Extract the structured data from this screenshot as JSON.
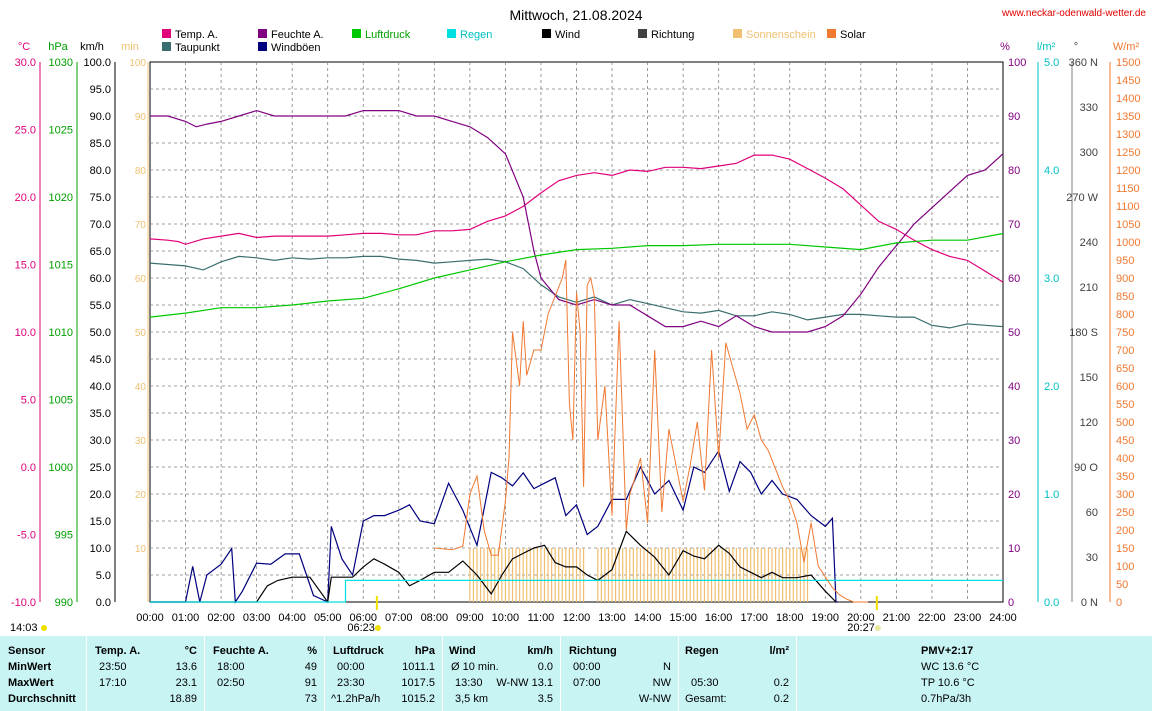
{
  "header": {
    "title": "Mittwoch, 21.08.2024",
    "website": "www.neckar-odenwald-wetter.de"
  },
  "colors": {
    "temp": "#e0007a",
    "dew": "#3a6e6e",
    "hum": "#800080",
    "gust": "#00007f",
    "wind": "#000000",
    "pressure": "#00c800",
    "rain": "#00e0e0",
    "dir": "#404040",
    "sunshine": "#f0c070",
    "solar": "#f07830",
    "grid": "#808080",
    "footer_bg": "#c8f4f4",
    "marker": "#f0e000"
  },
  "legend": {
    "temp": "Temp. A.",
    "dew": "Taupunkt",
    "hum": "Feuchte A.",
    "gust": "Windböen",
    "pressure": "Luftdruck",
    "rain": "Regen",
    "wind": "Wind",
    "dir": "Richtung",
    "sunshine": "Sonnenschein",
    "solar": "Solar"
  },
  "axes": {
    "units": {
      "temp": "°C",
      "pressure": "hPa",
      "wind": "km/h",
      "sun": "min",
      "hum": "%",
      "rain": "l/m²",
      "dir": "°",
      "solar": "W/m²"
    },
    "temp_ticks": [
      "30.0",
      "25.0",
      "20.0",
      "15.0",
      "10.0",
      "5.0",
      "0.0",
      "-5.0",
      "-10.0"
    ],
    "pressure_ticks": [
      "1030",
      "1025",
      "1020",
      "1015",
      "1010",
      "1005",
      "1000",
      "995",
      "990"
    ],
    "wind_ticks": [
      "100.0",
      "95.0",
      "90.0",
      "85.0",
      "80.0",
      "75.0",
      "70.0",
      "65.0",
      "60.0",
      "55.0",
      "50.0",
      "45.0",
      "40.0",
      "35.0",
      "30.0",
      "25.0",
      "20.0",
      "15.0",
      "10.0",
      "5.0",
      "0.0"
    ],
    "sun_ticks": [
      "100",
      "90",
      "80",
      "70",
      "60",
      "50",
      "40",
      "30",
      "20",
      "10"
    ],
    "hum_ticks": [
      "100",
      "90",
      "80",
      "70",
      "60",
      "50",
      "40",
      "30",
      "20",
      "10",
      "0"
    ],
    "rain_ticks": [
      "5.0",
      "4.0",
      "3.0",
      "2.0",
      "1.0",
      "0.0"
    ],
    "dir_ticks": [
      "360 N",
      "330",
      "300",
      "270 W",
      "240",
      "210",
      "180 S",
      "150",
      "120",
      "90 O",
      "60",
      "30",
      "0 N"
    ],
    "solar_ticks": [
      "1500",
      "1450",
      "1400",
      "1350",
      "1300",
      "1250",
      "1200",
      "1150",
      "1100",
      "1050",
      "1000",
      "950",
      "900",
      "850",
      "800",
      "750",
      "700",
      "650",
      "600",
      "550",
      "500",
      "450",
      "400",
      "350",
      "300",
      "250",
      "200",
      "150",
      "100",
      "50",
      "0"
    ],
    "x_ticks": [
      "00:00",
      "01:00",
      "02:00",
      "03:00",
      "04:00",
      "05:00",
      "06:00",
      "07:00",
      "08:00",
      "09:00",
      "10:00",
      "11:00",
      "12:00",
      "13:00",
      "14:00",
      "15:00",
      "16:00",
      "17:00",
      "18:00",
      "19:00",
      "20:00",
      "21:00",
      "22:00",
      "23:00",
      "24:00"
    ]
  },
  "markers": {
    "now": "14:03",
    "sunrise": "06:23",
    "sunset": "20:27"
  },
  "chart_data": {
    "type": "line",
    "title": "Mittwoch, 21.08.2024",
    "x_unit": "hour",
    "xlim": [
      0,
      24
    ],
    "grid": true,
    "series": [
      {
        "name": "Temp. A.",
        "axis": "temp",
        "ylim": [
          -10,
          30
        ],
        "x": [
          0,
          0.5,
          0.8,
          1,
          1.5,
          2,
          2.5,
          3,
          3.5,
          4,
          4.5,
          5,
          5.5,
          6,
          6.5,
          7,
          7.5,
          8,
          8.5,
          9,
          9.5,
          10,
          10.5,
          11,
          11.5,
          12,
          12.5,
          13,
          13.5,
          14,
          14.5,
          15,
          15.5,
          16,
          16.5,
          17,
          17.5,
          18,
          18.5,
          19,
          19.5,
          20,
          20.5,
          21,
          21.5,
          22,
          22.5,
          23,
          23.5,
          24
        ],
        "y": [
          16.9,
          16.8,
          16.7,
          16.5,
          16.9,
          17.1,
          17.3,
          17.0,
          17.1,
          17.1,
          17.1,
          17.1,
          17.2,
          17.3,
          17.3,
          17.2,
          17.2,
          17.5,
          17.5,
          17.6,
          18.2,
          18.6,
          19.3,
          20.3,
          21.2,
          21.6,
          21.8,
          21.6,
          22.0,
          21.9,
          22.2,
          22.2,
          22.1,
          22.3,
          22.5,
          23.1,
          23.1,
          22.8,
          22.1,
          21.4,
          20.6,
          19.4,
          18.2,
          17.6,
          16.8,
          16.1,
          15.6,
          15.3,
          14.5,
          13.7
        ]
      },
      {
        "name": "Taupunkt",
        "axis": "temp",
        "ylim": [
          -10,
          30
        ],
        "x": [
          0,
          0.5,
          1,
          1.5,
          2,
          2.5,
          3,
          3.5,
          4,
          4.5,
          5,
          5.5,
          6,
          6.5,
          7,
          7.5,
          8,
          8.5,
          9,
          9.5,
          10,
          10.5,
          11,
          11.5,
          12,
          12.5,
          13,
          13.5,
          14,
          14.5,
          15,
          15.5,
          16,
          16.5,
          17,
          17.5,
          18,
          18.5,
          19,
          19.5,
          20,
          20.5,
          21,
          21.5,
          22,
          22.5,
          23,
          23.5,
          24
        ],
        "y": [
          15.1,
          15.0,
          14.9,
          14.6,
          15.2,
          15.6,
          15.5,
          15.3,
          15.5,
          15.4,
          15.5,
          15.5,
          15.6,
          15.6,
          15.4,
          15.3,
          15.1,
          15.2,
          15.3,
          15.4,
          15.2,
          14.7,
          13.5,
          12.6,
          12.2,
          12.6,
          12.0,
          12.4,
          12.1,
          11.8,
          11.5,
          11.4,
          11.6,
          11.2,
          11.2,
          11.5,
          11.3,
          10.9,
          11.1,
          11.3,
          11.3,
          11.2,
          11.1,
          11.1,
          10.5,
          10.3,
          10.6,
          10.5,
          10.4
        ]
      },
      {
        "name": "Feuchte A.",
        "axis": "hum",
        "ylim": [
          0,
          100
        ],
        "x": [
          0,
          0.5,
          1,
          1.3,
          1.6,
          2,
          2.5,
          3,
          3.5,
          4,
          4.5,
          5,
          5.5,
          6,
          6.5,
          7,
          7.5,
          8,
          8.5,
          9,
          9.5,
          10,
          10.5,
          10.8,
          11,
          11.5,
          12,
          12.5,
          13,
          13.5,
          14,
          14.5,
          15,
          15.5,
          16,
          16.5,
          17,
          17.5,
          18,
          18.5,
          19,
          19.5,
          20,
          20.5,
          21,
          21.5,
          22,
          22.5,
          23,
          23.5,
          24
        ],
        "y": [
          90,
          90,
          89,
          88,
          88.5,
          89,
          90,
          91,
          90,
          90,
          90,
          90,
          90,
          91,
          91,
          91,
          90,
          90,
          89,
          88,
          86,
          83,
          75,
          65,
          60,
          56,
          55,
          56,
          55,
          55,
          53,
          51,
          51,
          52,
          51,
          53,
          51,
          50,
          50,
          50,
          51,
          53,
          57,
          62,
          66,
          70,
          73,
          76,
          79,
          80,
          83
        ]
      },
      {
        "name": "Luftdruck",
        "axis": "pressure",
        "ylim": [
          990,
          1030
        ],
        "x": [
          0,
          1,
          2,
          3,
          4,
          5,
          6,
          7,
          8,
          9,
          10,
          11,
          12,
          13,
          14,
          15,
          16,
          17,
          18,
          19,
          20,
          21,
          22,
          23,
          24
        ],
        "y": [
          1011.1,
          1011.4,
          1011.8,
          1011.8,
          1012.0,
          1012.3,
          1012.5,
          1013.2,
          1014.0,
          1014.6,
          1015.2,
          1015.7,
          1016.1,
          1016.2,
          1016.4,
          1016.4,
          1016.5,
          1016.5,
          1016.5,
          1016.3,
          1016.1,
          1016.6,
          1016.8,
          1016.8,
          1017.3
        ]
      },
      {
        "name": "Windböen",
        "axis": "wind",
        "ylim": [
          0,
          100
        ],
        "x": [
          0,
          1,
          1.2,
          1.4,
          1.6,
          2,
          2.3,
          2.4,
          2.6,
          3,
          3.4,
          3.8,
          4.2,
          4.6,
          5,
          5.1,
          5.4,
          5.7,
          6,
          6.3,
          6.6,
          7,
          7.3,
          7.6,
          8,
          8.4,
          8.8,
          9.2,
          9.6,
          9.9,
          10.2,
          10.5,
          10.8,
          11.1,
          11.4,
          11.7,
          12,
          12.3,
          12.6,
          13,
          13.4,
          13.8,
          14.2,
          14.6,
          15,
          15.3,
          15.6,
          16,
          16.3,
          16.6,
          16.9,
          17.2,
          17.5,
          17.8,
          18.2,
          18.6,
          19,
          19.2,
          19.3,
          19.35
        ],
        "y": [
          0,
          0,
          6.6,
          0,
          5,
          7,
          9.9,
          0,
          2,
          7.2,
          7,
          8.9,
          8.9,
          1.2,
          0,
          14,
          8,
          5,
          15,
          16,
          16,
          17,
          18,
          15,
          14.5,
          22,
          17,
          10.5,
          24,
          23,
          21.5,
          23.9,
          21,
          22,
          23,
          16,
          18,
          12.5,
          14,
          19,
          19,
          25,
          20,
          22.5,
          17,
          25,
          24,
          28,
          20.5,
          26,
          24,
          20,
          22.5,
          20,
          19,
          16,
          14,
          15.5,
          0,
          0
        ]
      },
      {
        "name": "Wind",
        "axis": "wind",
        "ylim": [
          0,
          100
        ],
        "x": [
          0,
          3,
          3.3,
          3.6,
          4,
          4.2,
          4.5,
          5,
          5.1,
          5.4,
          5.7,
          6,
          6.3,
          6.6,
          7,
          7.3,
          7.6,
          8,
          8.4,
          8.8,
          9.2,
          9.6,
          9.9,
          10.2,
          10.5,
          10.8,
          11.1,
          11.4,
          11.7,
          12,
          12.3,
          12.6,
          13,
          13.4,
          13.8,
          14.2,
          14.6,
          15,
          15.3,
          15.6,
          16,
          16.3,
          16.6,
          16.9,
          17.2,
          17.5,
          17.8,
          18.2,
          18.6,
          19,
          19.3
        ],
        "y": [
          0,
          0,
          3,
          4,
          4.6,
          4.6,
          4.6,
          0,
          4.6,
          4.6,
          4.6,
          6.5,
          8,
          7,
          5.5,
          3,
          4,
          5.5,
          5.5,
          7.6,
          5,
          1.5,
          5,
          8,
          9,
          10,
          10.5,
          7.3,
          6.5,
          6.5,
          5,
          4,
          6,
          13.1,
          10.5,
          8.3,
          5,
          9.5,
          8.5,
          8,
          10.5,
          9,
          6.5,
          5.5,
          4.5,
          5.5,
          4.5,
          4.5,
          5,
          2,
          0
        ]
      },
      {
        "name": "Regen",
        "axis": "rain",
        "ylim": [
          0,
          5
        ],
        "x": [
          0,
          5.5,
          5.5,
          24
        ],
        "y": [
          0,
          0,
          0.2,
          0.2
        ]
      },
      {
        "name": "Solar",
        "axis": "solar",
        "ylim": [
          0,
          1500
        ],
        "x": [
          8,
          8.5,
          8.8,
          9,
          9.2,
          9.4,
          9.6,
          9.8,
          10,
          10.1,
          10.2,
          10.4,
          10.5,
          10.6,
          10.8,
          11,
          11.2,
          11.4,
          11.6,
          11.7,
          11.8,
          11.9,
          12,
          12.1,
          12.2,
          12.3,
          12.4,
          12.5,
          12.6,
          12.8,
          13,
          13.2,
          13.4,
          13.5,
          13.6,
          13.8,
          14,
          14.2,
          14.4,
          14.6,
          14.8,
          15,
          15.2,
          15.4,
          15.6,
          15.8,
          16,
          16.2,
          16.4,
          16.6,
          16.8,
          17,
          17.2,
          17.4,
          17.6,
          17.8,
          18,
          18.2,
          18.4,
          18.6,
          18.8,
          19,
          19.2,
          19.4,
          19.6,
          19.8,
          20,
          20.2
        ],
        "y": [
          150,
          145,
          155,
          300,
          350,
          200,
          130,
          130,
          280,
          400,
          750,
          600,
          780,
          630,
          700,
          700,
          800,
          850,
          900,
          950,
          550,
          450,
          860,
          750,
          320,
          880,
          900,
          850,
          450,
          600,
          240,
          780,
          200,
          300,
          330,
          400,
          220,
          700,
          250,
          480,
          380,
          280,
          380,
          500,
          310,
          700,
          400,
          720,
          650,
          580,
          480,
          520,
          450,
          420,
          370,
          320,
          280,
          220,
          110,
          220,
          100,
          70,
          40,
          20,
          8,
          0,
          0,
          0
        ]
      },
      {
        "name": "Sonnenschein",
        "axis": "sun",
        "ylim": [
          0,
          100
        ],
        "x": [
          9,
          12.5,
          12.5,
          18.5
        ],
        "y": [
          10,
          10,
          10,
          10
        ]
      }
    ]
  },
  "table": {
    "headers": {
      "sensor": "Sensor",
      "temp": "Temp. A.",
      "temp_unit": "°C",
      "hum": "Feuchte A.",
      "hum_unit": "%",
      "press": "Luftdruck",
      "press_unit": "hPa",
      "wind": "Wind",
      "wind_unit": "km/h",
      "dir": "Richtung",
      "rain": "Regen",
      "rain_unit": "l/m²",
      "pmv": "PMV+2:17"
    },
    "row_labels": [
      "MinWert",
      "MaxWert",
      "Durchschnitt"
    ],
    "temp": [
      [
        "23:50",
        "13.6"
      ],
      [
        "17:10",
        "23.1"
      ],
      [
        "",
        "18.89"
      ]
    ],
    "hum": [
      [
        "18:00",
        "49"
      ],
      [
        "02:50",
        "91"
      ],
      [
        "",
        "73"
      ]
    ],
    "press": [
      [
        "00:00",
        "1011.1"
      ],
      [
        "23:30",
        "1017.5"
      ],
      [
        "^1.2hPa/h",
        "1015.2"
      ]
    ],
    "wind": [
      [
        "Ø 10 min.",
        "0.0"
      ],
      [
        "13:30",
        "W-NW 13.1"
      ],
      [
        "3,5 km",
        "3.5"
      ]
    ],
    "dir": [
      [
        "00:00",
        "N"
      ],
      [
        "07:00",
        "NW"
      ],
      [
        "",
        "W-NW"
      ]
    ],
    "rain": [
      [
        "",
        ""
      ],
      [
        "05:30",
        "0.2"
      ],
      [
        "Gesamt:",
        "0.2"
      ]
    ],
    "pmv": [
      "WC 13.6 °C",
      "TP 10.6 °C",
      "0.7hPa/3h"
    ]
  }
}
